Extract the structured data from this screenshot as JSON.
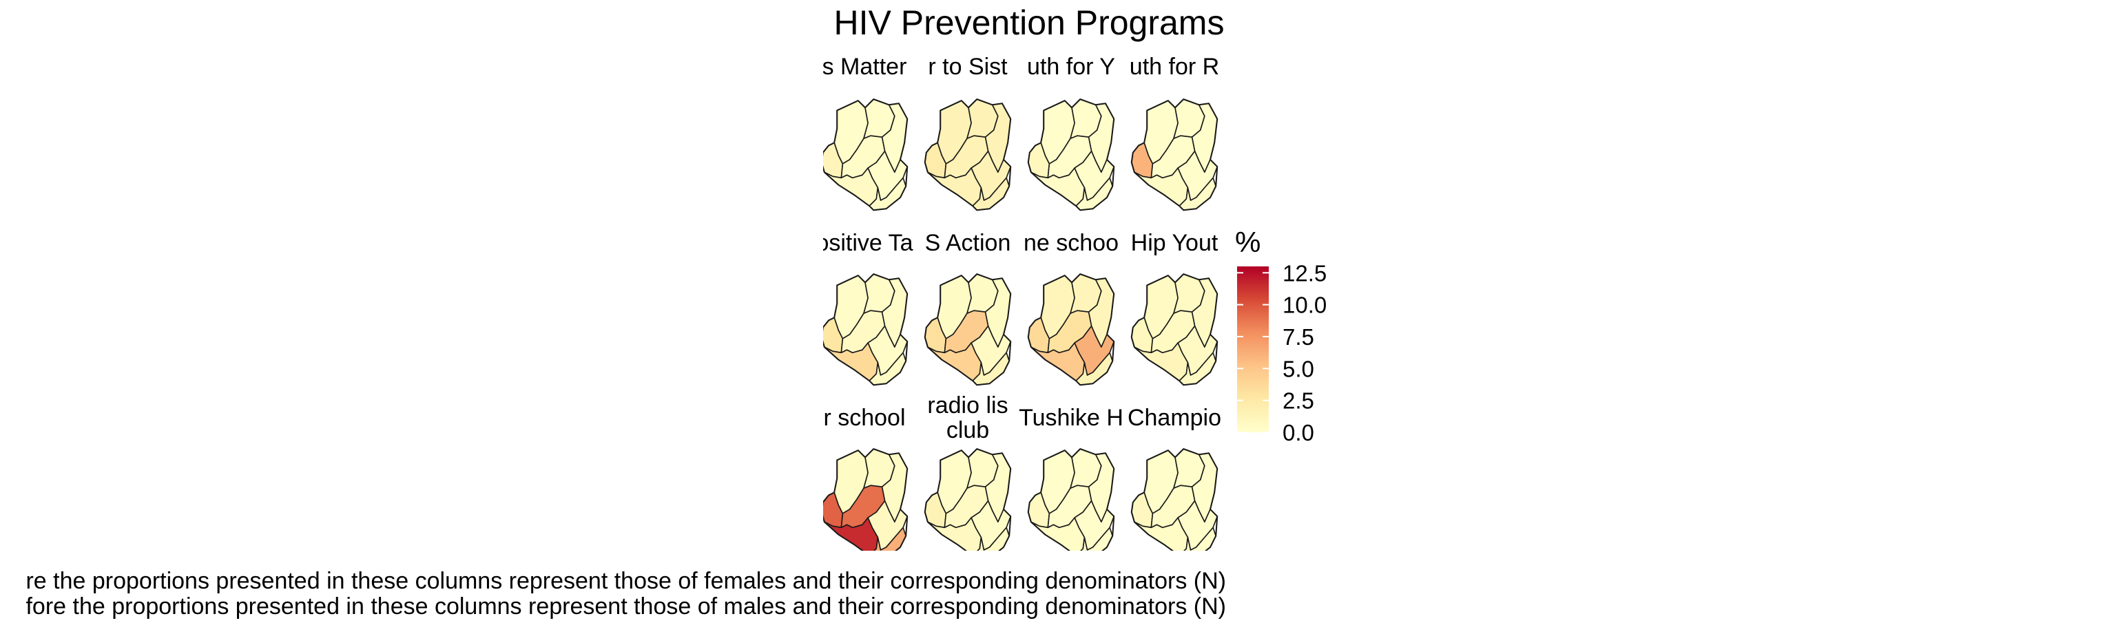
{
  "chart_data": {
    "type": "choropleth",
    "title": "HIV Prevention Programs",
    "legend": {
      "title": "%",
      "ticks": [
        "12.5",
        "10.0",
        "7.5",
        "5.0",
        "2.5",
        "0.0"
      ],
      "range": [
        0,
        13
      ],
      "colors": [
        "#ffffcc",
        "#fee9a5",
        "#fdc387",
        "#f38f5f",
        "#d74a36",
        "#b10026"
      ],
      "position": "right"
    },
    "regions": [
      "north-west",
      "north",
      "north-east",
      "west",
      "central",
      "east",
      "south-west",
      "south"
    ],
    "facets": [
      {
        "label_line1": "s Matter",
        "label_line2": "",
        "values": [
          0.2,
          0.2,
          0.2,
          1.3,
          0.3,
          0.2,
          0.6,
          0.3
        ]
      },
      {
        "label_line1": "r to Sist",
        "label_line2": "",
        "values": [
          1.5,
          1.5,
          1.5,
          2.2,
          1.5,
          1.5,
          1.5,
          1.5
        ]
      },
      {
        "label_line1": "uth for Y",
        "label_line2": "",
        "values": [
          0.1,
          0.1,
          0.1,
          1.0,
          0.2,
          0.1,
          0.3,
          0.2
        ]
      },
      {
        "label_line1": "uth for R",
        "label_line2": "",
        "values": [
          0.1,
          0.1,
          0.1,
          6.0,
          0.2,
          0.1,
          0.5,
          0.3
        ]
      },
      {
        "label_line1": "ositive Ta",
        "label_line2": "",
        "values": [
          0.3,
          0.3,
          0.3,
          2.8,
          0.6,
          0.3,
          3.6,
          0.5
        ]
      },
      {
        "label_line1": "S Action",
        "label_line2": "",
        "values": [
          0.5,
          0.5,
          0.5,
          3.2,
          4.5,
          0.6,
          4.2,
          1.2
        ]
      },
      {
        "label_line1": "ne schoo",
        "label_line2": "",
        "values": [
          1.2,
          1.2,
          1.2,
          3.6,
          3.0,
          6.2,
          4.8,
          1.4
        ]
      },
      {
        "label_line1": "Hip Yout",
        "label_line2": "",
        "values": [
          0.6,
          0.6,
          0.6,
          1.0,
          0.7,
          0.6,
          1.2,
          0.6
        ]
      },
      {
        "label_line1": "r school",
        "label_line2": "",
        "values": [
          0.5,
          0.5,
          0.5,
          9.5,
          9.0,
          0.8,
          11.5,
          6.2
        ]
      },
      {
        "label_line1": "radio lis",
        "label_line2": "club",
        "values": [
          0.3,
          0.3,
          0.3,
          1.4,
          0.6,
          0.3,
          0.8,
          0.5
        ]
      },
      {
        "label_line1": "Tushike H",
        "label_line2": "",
        "values": [
          0.1,
          0.1,
          0.1,
          0.8,
          0.2,
          0.1,
          0.4,
          0.2
        ]
      },
      {
        "label_line1": "Champio",
        "label_line2": "",
        "values": [
          0.2,
          0.2,
          0.2,
          0.9,
          0.3,
          0.2,
          0.4,
          0.2
        ]
      }
    ],
    "caption": [
      "re the proportions presented in these columns represent those of females and their corresponding denominators (N)",
      "fore the proportions presented in these columns represent those of males and their corresponding denominators (N)"
    ]
  }
}
